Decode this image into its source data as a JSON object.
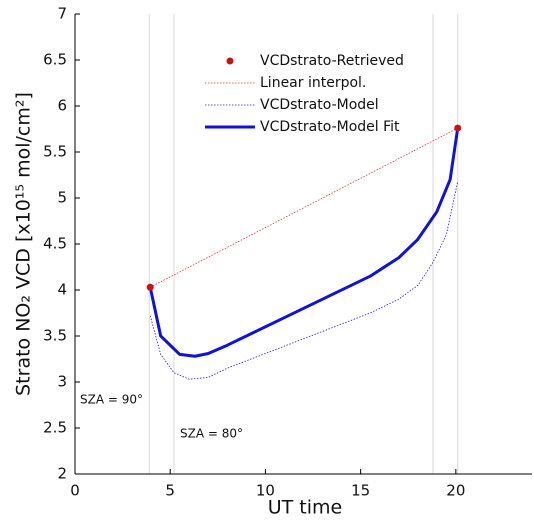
{
  "chart_data": {
    "type": "line",
    "xlabel": "UT time",
    "ylabel": "Strato NO₂ VCD [x10¹⁵ mol/cm²]",
    "xlim": [
      0,
      24
    ],
    "xticks": [
      0,
      5,
      10,
      15,
      20
    ],
    "ylim": [
      2,
      7
    ],
    "yticks": [
      2,
      2.5,
      3,
      3.5,
      4,
      4.5,
      5,
      5.5,
      6,
      6.5,
      7
    ],
    "vlines": [
      3.9,
      5.2,
      18.8,
      20.1
    ],
    "legend": "top",
    "annotations": [
      "SZA = 90°",
      "SZA = 80°"
    ],
    "series": [
      {
        "name": "VCDstrato-Retrieved",
        "color": "#d01010",
        "kind": "scatter",
        "x": [
          3.95,
          20.1
        ],
        "values": [
          4.03,
          5.76
        ]
      },
      {
        "name": "Linear interpol.",
        "color": "#e03030",
        "kind": "line",
        "style": "dotted",
        "linewidth": 0.8,
        "x": [
          3.95,
          20.1
        ],
        "values": [
          4.03,
          5.76
        ]
      },
      {
        "name": "VCDstrato-Model",
        "color": "#2020d0",
        "kind": "line",
        "style": "dotted",
        "linewidth": 0.8,
        "x": [
          3.95,
          4.5,
          5.2,
          6,
          7,
          8,
          10.5,
          13,
          15.5,
          17,
          18,
          18.8,
          19.5,
          20.1
        ],
        "values": [
          3.72,
          3.3,
          3.1,
          3.03,
          3.05,
          3.15,
          3.35,
          3.55,
          3.75,
          3.9,
          4.05,
          4.3,
          4.6,
          5.18
        ]
      },
      {
        "name": "VCDstrato-Model Fit",
        "color": "#1010e0",
        "kind": "line",
        "style": "solid",
        "linewidth": 3,
        "x": [
          3.95,
          4.5,
          5.5,
          6.3,
          7,
          8,
          10.5,
          13,
          15.5,
          17,
          18,
          19,
          19.7,
          20.1
        ],
        "values": [
          4.03,
          3.5,
          3.3,
          3.28,
          3.31,
          3.4,
          3.65,
          3.9,
          4.15,
          4.35,
          4.55,
          4.85,
          5.2,
          5.76
        ]
      }
    ]
  }
}
